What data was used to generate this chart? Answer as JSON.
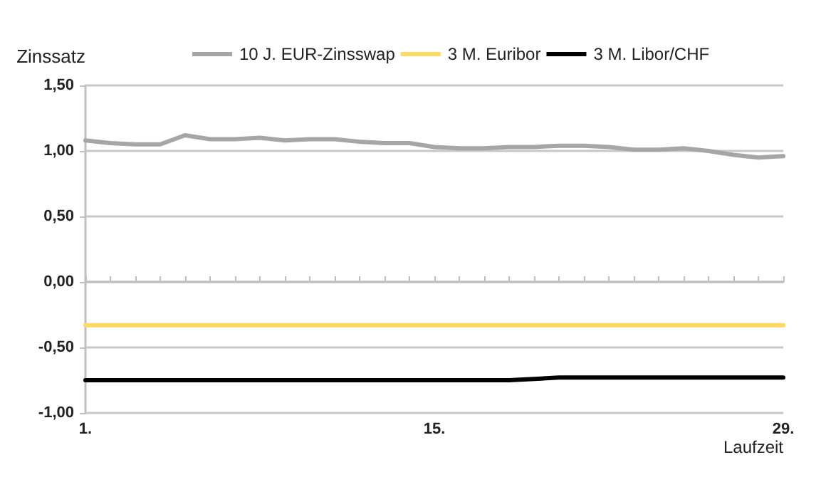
{
  "chart_data": {
    "type": "line",
    "ylabel": "Zinssatz",
    "xlabel": "Laufzeit",
    "categories": [
      "1.",
      null,
      null,
      null,
      null,
      null,
      null,
      null,
      null,
      null,
      null,
      null,
      null,
      null,
      "15.",
      null,
      null,
      null,
      null,
      null,
      null,
      null,
      null,
      null,
      null,
      null,
      null,
      null,
      "29."
    ],
    "series": [
      {
        "name": "10 J. EUR-Zinsswap",
        "color": "#a6a6a6",
        "values": [
          1.08,
          1.06,
          1.05,
          1.05,
          1.12,
          1.09,
          1.09,
          1.1,
          1.08,
          1.09,
          1.09,
          1.07,
          1.06,
          1.06,
          1.03,
          1.02,
          1.02,
          1.03,
          1.03,
          1.04,
          1.04,
          1.03,
          1.01,
          1.01,
          1.02,
          1.0,
          0.97,
          0.95,
          0.96
        ]
      },
      {
        "name": "3 M. Euribor",
        "color": "#ffd966",
        "values": [
          -0.33,
          -0.33,
          -0.33,
          -0.33,
          -0.33,
          -0.33,
          -0.33,
          -0.33,
          -0.33,
          -0.33,
          -0.33,
          -0.33,
          -0.33,
          -0.33,
          -0.33,
          -0.33,
          -0.33,
          -0.33,
          -0.33,
          -0.33,
          -0.33,
          -0.33,
          -0.33,
          -0.33,
          -0.33,
          -0.33,
          -0.33,
          -0.33,
          -0.33
        ]
      },
      {
        "name": "3 M. Libor/CHF",
        "color": "#000000",
        "values": [
          -0.75,
          -0.75,
          -0.75,
          -0.75,
          -0.75,
          -0.75,
          -0.75,
          -0.75,
          -0.75,
          -0.75,
          -0.75,
          -0.75,
          -0.75,
          -0.75,
          -0.75,
          -0.75,
          -0.75,
          -0.75,
          -0.74,
          -0.73,
          -0.73,
          -0.73,
          -0.73,
          -0.73,
          -0.73,
          -0.73,
          -0.73,
          -0.73,
          -0.73
        ]
      }
    ],
    "ylim": [
      -1.0,
      1.5
    ],
    "yticks": [
      {
        "value": -1.0,
        "label": "-1,00"
      },
      {
        "value": -0.5,
        "label": "-0,50"
      },
      {
        "value": 0,
        "label": "0,00"
      },
      {
        "value": 0.5,
        "label": "0,50"
      },
      {
        "value": 1.0,
        "label": "1,00"
      },
      {
        "value": 1.5,
        "label": "1,50"
      }
    ],
    "grid": "y",
    "legend": "top",
    "marker": "none",
    "line_style": "solid"
  }
}
